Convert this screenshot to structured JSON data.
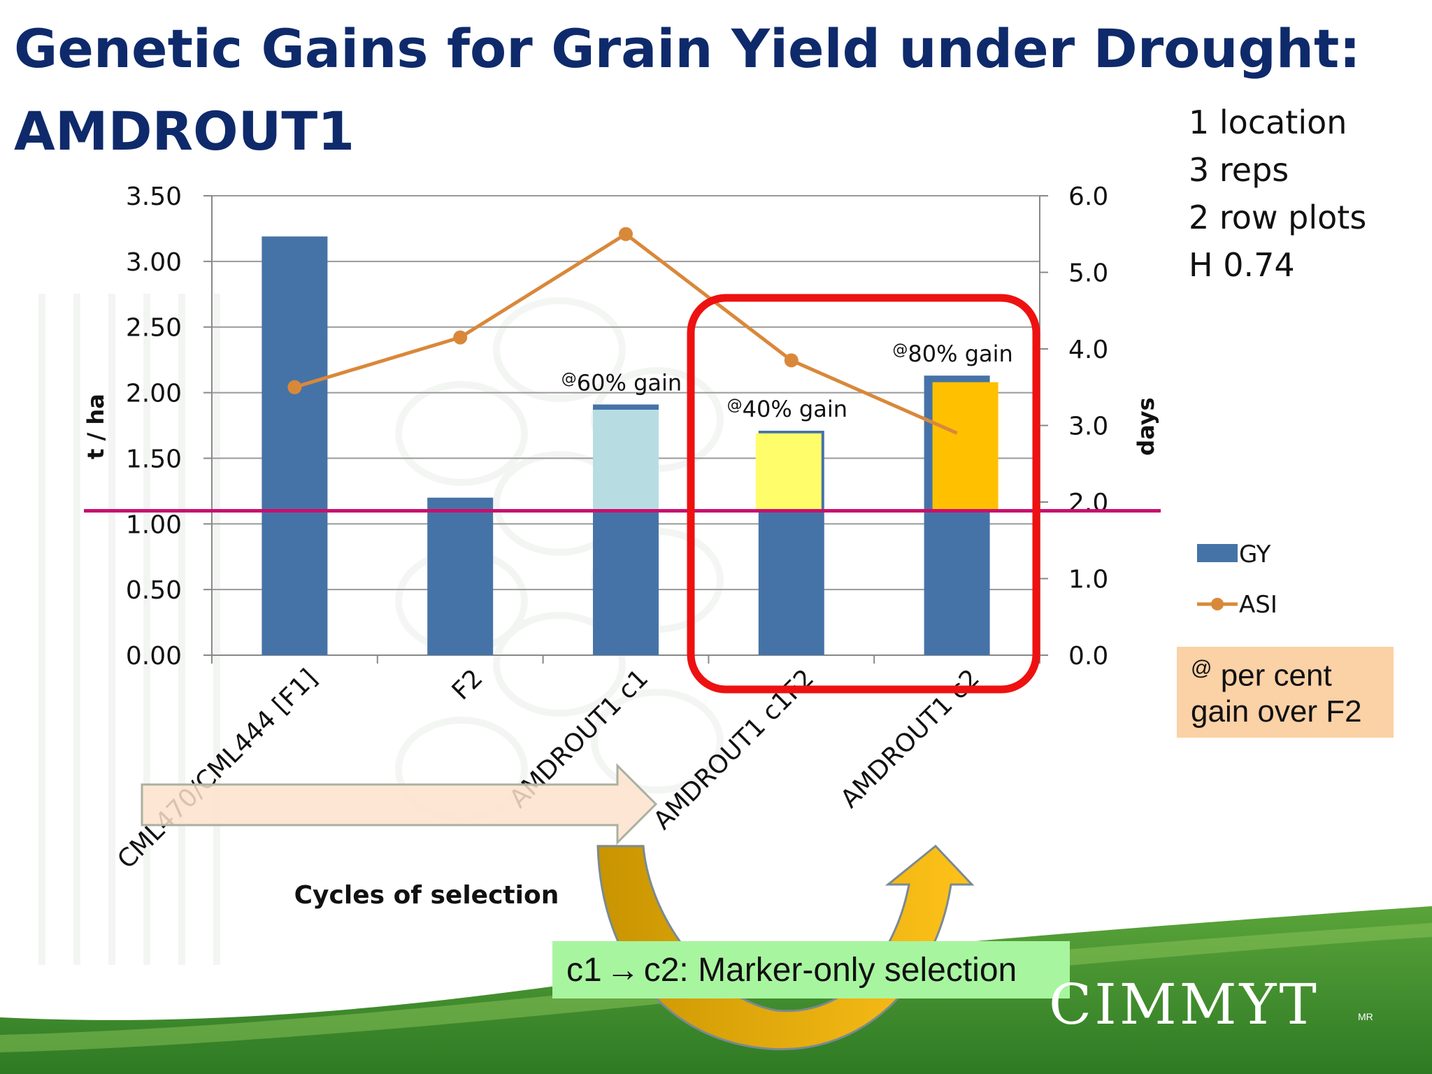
{
  "slide": {
    "title_line1": "Genetic Gains for Grain Yield under Drought:",
    "title_line2": "AMDROUT1",
    "info_lines": [
      "1 location",
      "3 reps",
      "2 row plots",
      "H 0.74"
    ],
    "note_box": {
      "line1_symbol": "@",
      "line1_text": " per cent",
      "line2": "gain over F2"
    },
    "selection_label": {
      "left": "c1",
      "arrow": "→",
      "right": "c2: Marker-only selection"
    },
    "logo_text": "CIMMYT",
    "logo_mark": "MR",
    "colors": {
      "title": "#0e2a6b",
      "gy_bar": "#4673a7",
      "asi_line": "#d9883a",
      "ref_line": "#c8106e",
      "highlight_box": "#ee1111",
      "gain_c1": "#b7dde3",
      "gain_c1f2": "#fffe6a",
      "gain_c2": "#ffc000",
      "progress_arrow": "#fde2cc"
    }
  },
  "chart_data": {
    "type": "bar",
    "categories": [
      "CML470/CML444 [F1]",
      "F2",
      "AMDROUT1 c1",
      "AMDROUT1 c1F2",
      "AMDROUT1 c2"
    ],
    "series": [
      {
        "name": "GY",
        "axis": "left",
        "values": [
          3.19,
          1.2,
          1.91,
          1.71,
          2.13
        ]
      },
      {
        "name": "ASI",
        "axis": "right",
        "type": "line",
        "values": [
          3.5,
          4.15,
          5.5,
          3.85,
          2.9
        ]
      }
    ],
    "gain_segments": [
      {
        "category": "AMDROUT1 c1",
        "base": 1.1,
        "top": 1.87,
        "label_symbol": "@",
        "label": "60% gain"
      },
      {
        "category": "AMDROUT1 c1F2",
        "base": 1.1,
        "top": 1.69,
        "label_symbol": "@",
        "label": "40% gain"
      },
      {
        "category": "AMDROUT1 c2",
        "base": 1.1,
        "top": 2.08,
        "label_symbol": "@",
        "label": "80% gain"
      }
    ],
    "reference_line": {
      "value": 1.1,
      "axis": "left"
    },
    "xlabel": "Cycles of selection",
    "ylabel_left": "t / ha",
    "ylabel_right": "days",
    "ylim_left": [
      0,
      3.5
    ],
    "ylim_right": [
      0,
      6
    ],
    "yticks_left": [
      "0.00",
      "0.50",
      "1.00",
      "1.50",
      "2.00",
      "2.50",
      "3.00",
      "3.50"
    ],
    "yticks_right": [
      "0.0",
      "1.0",
      "2.0",
      "3.0",
      "4.0",
      "5.0",
      "6.0"
    ],
    "legend": [
      "GY",
      "ASI"
    ],
    "legend_position": "right",
    "grid": true
  }
}
